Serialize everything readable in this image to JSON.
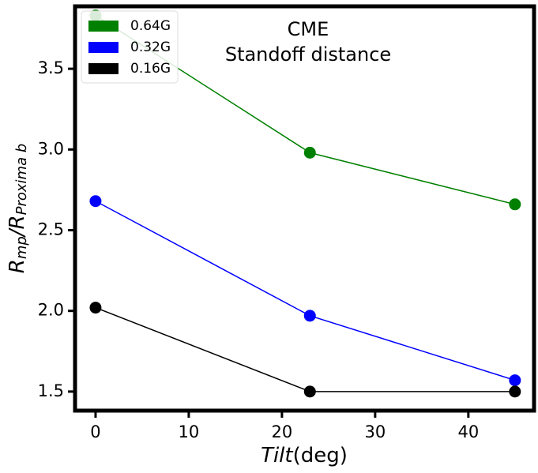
{
  "chart_data": {
    "type": "line",
    "title": [
      "CME",
      "Standoff distance"
    ],
    "xlabel": [
      "Tilt",
      "(deg)"
    ],
    "ylabel": [
      "R",
      "mp",
      "/R",
      "Proxima b"
    ],
    "x": [
      0,
      23,
      45
    ],
    "series": [
      {
        "name": "0.64G",
        "color": "#008000",
        "values": [
          3.83,
          2.98,
          2.66
        ]
      },
      {
        "name": "0.32G",
        "color": "#0000ff",
        "values": [
          2.68,
          1.97,
          1.57
        ]
      },
      {
        "name": "0.16G",
        "color": "#000000",
        "values": [
          2.02,
          1.5,
          1.5
        ]
      }
    ],
    "xlim": [
      -2.2,
      47.05
    ],
    "xticks": [
      0,
      10,
      20,
      30,
      40
    ],
    "ylim": [
      1.382,
      3.887
    ],
    "yticks": [
      {
        "value": 1.5,
        "label": "1.5"
      },
      {
        "value": 2,
        "label": "2.0"
      },
      {
        "value": 2.5,
        "label": "2.5"
      },
      {
        "value": 3,
        "label": "3.0"
      },
      {
        "value": 3.5,
        "label": "3.5"
      }
    ],
    "legend": "upper left",
    "grid": false
  }
}
